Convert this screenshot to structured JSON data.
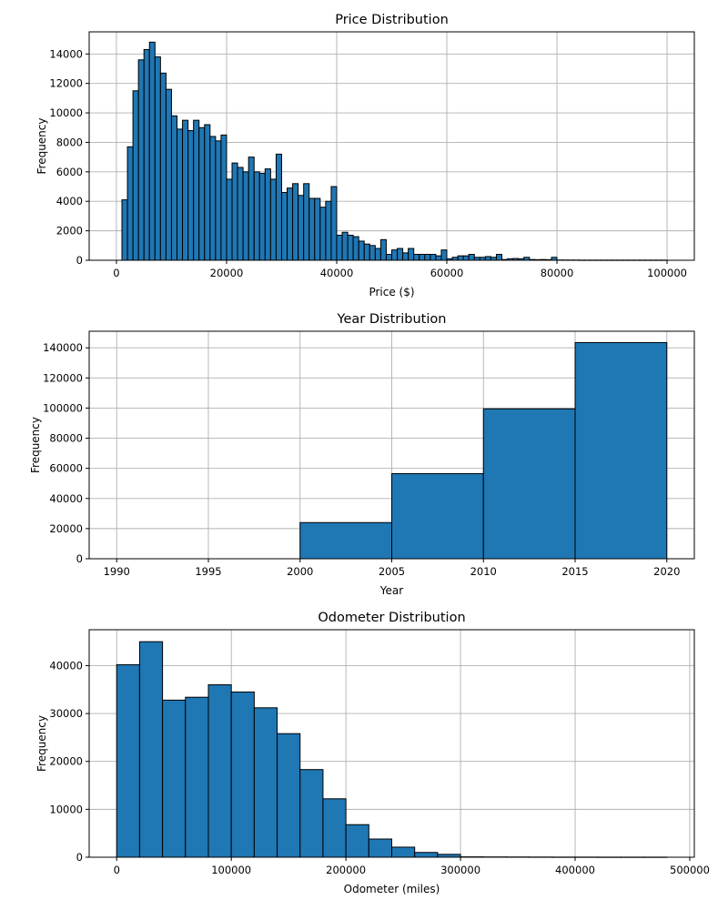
{
  "chart_data": [
    {
      "type": "bar",
      "title": "Price Distribution",
      "xlabel": "Price ($)",
      "ylabel": "Frequency",
      "xlim": [
        -4950,
        104950
      ],
      "ylim": [
        0,
        15500
      ],
      "xticks": [
        0,
        20000,
        40000,
        60000,
        80000,
        100000
      ],
      "yticks": [
        0,
        2000,
        4000,
        6000,
        8000,
        10000,
        12000,
        14000
      ],
      "grid": true,
      "bin_start": 0,
      "bin_width": 1000,
      "values": [
        0,
        4100,
        7700,
        11500,
        13600,
        14300,
        14800,
        13800,
        12700,
        11600,
        9800,
        8900,
        9500,
        8800,
        9500,
        9000,
        9200,
        8400,
        8100,
        8500,
        5500,
        6600,
        6300,
        6000,
        7000,
        6000,
        5900,
        6200,
        5500,
        7200,
        4600,
        4900,
        5200,
        4400,
        5200,
        4200,
        4200,
        3600,
        4000,
        5000,
        1700,
        1900,
        1700,
        1600,
        1300,
        1100,
        1000,
        800,
        1400,
        400,
        700,
        800,
        500,
        800,
        400,
        400,
        400,
        400,
        300,
        700,
        100,
        200,
        300,
        300,
        400,
        200,
        200,
        250,
        200,
        400,
        50,
        100,
        120,
        100,
        200,
        50,
        40,
        50,
        40,
        200,
        20,
        15,
        15,
        15,
        10,
        10,
        10,
        10,
        10,
        10,
        10,
        10,
        10,
        10,
        10,
        10,
        10,
        10,
        10,
        10
      ]
    },
    {
      "type": "bar",
      "title": "Year Distribution",
      "xlabel": "Year",
      "ylabel": "Frequency",
      "xlim": [
        1988.5,
        2021.5
      ],
      "ylim": [
        0,
        151000
      ],
      "xticks": [
        1990,
        1995,
        2000,
        2005,
        2010,
        2015,
        2020
      ],
      "yticks": [
        0,
        20000,
        40000,
        60000,
        80000,
        100000,
        120000,
        140000
      ],
      "grid": true,
      "bin_start": 1990,
      "bin_width": 5,
      "values": [
        0,
        0,
        24000,
        56500,
        99500,
        143500
      ]
    },
    {
      "type": "bar",
      "title": "Odometer Distribution",
      "xlabel": "Odometer (miles)",
      "ylabel": "Frequency",
      "xlim": [
        -24000,
        504000
      ],
      "ylim": [
        0,
        47500
      ],
      "xticks": [
        0,
        100000,
        200000,
        300000,
        400000,
        500000
      ],
      "yticks": [
        0,
        10000,
        20000,
        30000,
        40000
      ],
      "grid": true,
      "bin_start": 0,
      "bin_width": 20000,
      "values": [
        40200,
        45000,
        32800,
        33400,
        36000,
        34500,
        31200,
        25800,
        18300,
        12200,
        6800,
        3800,
        2100,
        1000,
        600,
        80,
        60,
        50,
        40,
        30,
        30,
        20,
        20,
        20
      ]
    }
  ]
}
